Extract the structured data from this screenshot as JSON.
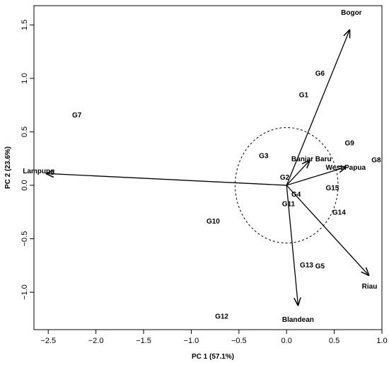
{
  "chart_data": {
    "type": "scatter",
    "subtype": "pca-biplot",
    "xlabel": "PC 1 (57.1%)",
    "ylabel": "PC 2 (23.6%)",
    "xlim": [
      -2.65,
      1.0
    ],
    "ylim": [
      -1.35,
      1.68
    ],
    "x_ticks": [
      -2.5,
      -2.0,
      -1.5,
      -1.0,
      -0.5,
      0.0,
      0.5,
      1.0
    ],
    "x_tick_labels": [
      "−2.5",
      "−2.0",
      "−1.5",
      "−1.0",
      "−0.5",
      "0.0",
      "0.5",
      "1.0"
    ],
    "y_ticks": [
      -1.0,
      -0.5,
      0.0,
      0.5,
      1.0,
      1.5
    ],
    "y_tick_labels": [
      "−1.0",
      "−0.5",
      "0.0",
      "0.5",
      "1.0",
      "1.5"
    ],
    "grid": false,
    "correlation_circle_radius": 0.54,
    "points": [
      {
        "label": "G1",
        "x": 0.18,
        "y": 0.85
      },
      {
        "label": "G2",
        "x": -0.02,
        "y": 0.08
      },
      {
        "label": "G3",
        "x": -0.24,
        "y": 0.28
      },
      {
        "label": "G4",
        "x": 0.1,
        "y": -0.08
      },
      {
        "label": "G5",
        "x": 0.35,
        "y": -0.75
      },
      {
        "label": "G6",
        "x": 0.35,
        "y": 1.05
      },
      {
        "label": "G7",
        "x": -2.2,
        "y": 0.66
      },
      {
        "label": "G8",
        "x": 0.94,
        "y": 0.24
      },
      {
        "label": "G9",
        "x": 0.66,
        "y": 0.4
      },
      {
        "label": "G10",
        "x": -0.77,
        "y": -0.33
      },
      {
        "label": "G11",
        "x": 0.02,
        "y": -0.17
      },
      {
        "label": "G12",
        "x": -0.68,
        "y": -1.22
      },
      {
        "label": "G13",
        "x": 0.21,
        "y": -0.74
      },
      {
        "label": "G14",
        "x": 0.55,
        "y": -0.25
      },
      {
        "label": "G15",
        "x": 0.48,
        "y": -0.02
      }
    ],
    "vectors": [
      {
        "label": "Bogor",
        "x": 0.66,
        "y": 1.45,
        "label_x": 0.68,
        "label_y": 1.62
      },
      {
        "label": "Banjar Baru",
        "x": 0.24,
        "y": 0.23,
        "label_x": 0.26,
        "label_y": 0.25
      },
      {
        "label": "West Papua",
        "x": 0.62,
        "y": 0.17,
        "label_x": 0.62,
        "label_y": 0.17
      },
      {
        "label": "Lampung",
        "x": -2.52,
        "y": 0.11,
        "label_x": -2.6,
        "label_y": 0.14
      },
      {
        "label": "Riau",
        "x": 0.86,
        "y": -0.84,
        "label_x": 0.87,
        "label_y": -0.94
      },
      {
        "label": "Blandean",
        "x": 0.12,
        "y": -1.12,
        "label_x": 0.12,
        "label_y": -1.25
      }
    ]
  }
}
